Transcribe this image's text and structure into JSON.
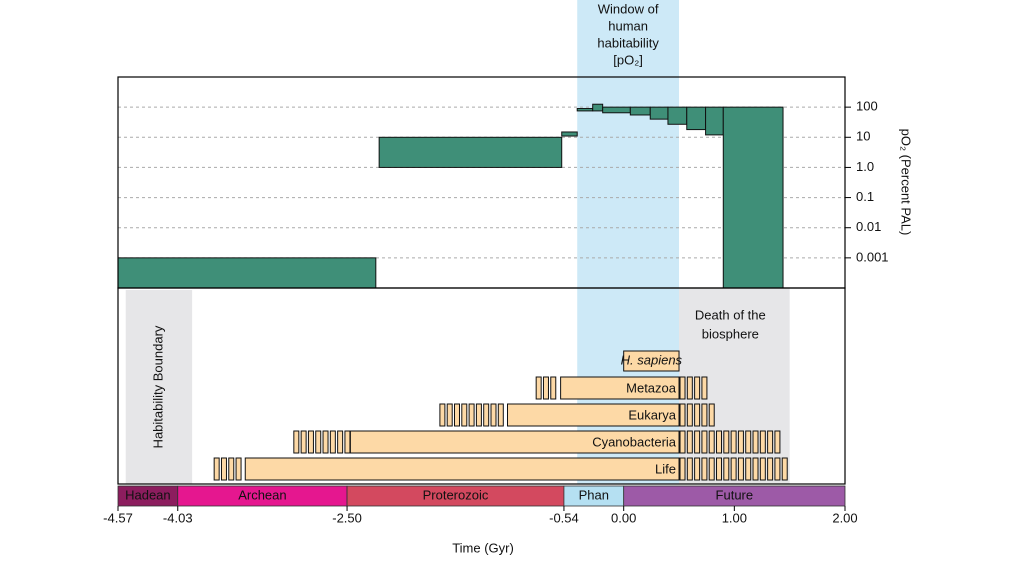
{
  "chart_data": {
    "type": "timeline",
    "xlabel": "Time (Gyr)",
    "xlim": [
      -4.57,
      2.0
    ],
    "xticks": [
      -4.57,
      -4.03,
      {
        "value": -2.5,
        "label": "-2.50"
      },
      {
        "value": -0.54,
        "label": "-0.54"
      },
      {
        "value": 0,
        "label": "0.00"
      },
      {
        "value": 1,
        "label": "1.00"
      },
      {
        "value": 2,
        "label": "2.00"
      }
    ],
    "eras": [
      {
        "name": "Hadean",
        "start": -4.57,
        "end": -4.03,
        "color": "#8c1d5e"
      },
      {
        "name": "Archean",
        "start": -4.03,
        "end": -2.5,
        "color": "#e5178f"
      },
      {
        "name": "Proterozoic",
        "start": -2.5,
        "end": -0.54,
        "color": "#d3495f"
      },
      {
        "name": "Phan",
        "start": -0.54,
        "end": 0,
        "color": "#b5e0f2"
      },
      {
        "name": "Future",
        "start": 0,
        "end": 2.0,
        "color": "#9d5aa7"
      }
    ],
    "o2": {
      "ylabel": "pO₂ (Percent PAL)",
      "log": true,
      "grid": true,
      "color": "#3f8f78",
      "ylim": [
        0.0001,
        1000
      ],
      "yticks": [
        100,
        10,
        {
          "value": 1,
          "label": "1.0"
        },
        0.1,
        0.01,
        0.001
      ],
      "bands": [
        {
          "start": -4.57,
          "end": -2.24,
          "low": 0.0001,
          "high": 0.001
        },
        {
          "start": -2.21,
          "end": -0.56,
          "low": 1,
          "high": 10
        },
        {
          "start": -0.56,
          "end": -0.42,
          "low": 11,
          "high": 15
        },
        {
          "start": -0.42,
          "end": -0.28,
          "low": 75,
          "high": 90
        },
        {
          "start": -0.28,
          "end": -0.19,
          "low": 75,
          "high": 125
        },
        {
          "start": -0.19,
          "end": 0.06,
          "low": 65,
          "high": 100
        },
        {
          "start": 0.06,
          "end": 0.24,
          "low": 55,
          "high": 100
        },
        {
          "start": 0.24,
          "end": 0.4,
          "low": 40,
          "high": 100
        },
        {
          "start": 0.4,
          "end": 0.57,
          "low": 27,
          "high": 100
        },
        {
          "start": 0.57,
          "end": 0.74,
          "low": 18,
          "high": 100
        },
        {
          "start": 0.74,
          "end": 0.9,
          "low": 12,
          "high": 100
        },
        {
          "start": 0.9,
          "end": 1.44,
          "low": 0.0001,
          "high": 100
        }
      ]
    },
    "window": {
      "label": [
        "Window of",
        "human",
        "habitability",
        "[pO₂]"
      ],
      "start": -0.42,
      "end": 0.5,
      "color": "#cde9f7"
    },
    "zones": [
      {
        "label": [
          "Habitability Boundary"
        ],
        "start": -4.5,
        "end": -3.9,
        "color": "#e6e6e8"
      },
      {
        "label": [
          "Death of the",
          "biosphere"
        ],
        "start": 0.5,
        "end": 1.5,
        "color": "#e6e6e8"
      }
    ],
    "lineages": [
      {
        "name": "Life",
        "hatch_start": -3.71,
        "start": -3.42,
        "end": 0.5,
        "hatch_end": 1.5
      },
      {
        "name": "Cyanobacteria",
        "hatch_start": -2.99,
        "start": -2.47,
        "end": 0.5,
        "hatch_end": 1.43
      },
      {
        "name": "Eukarya",
        "hatch_start": -1.67,
        "start": -1.05,
        "end": 0.5,
        "hatch_end": 0.83
      },
      {
        "name": "Metazoa",
        "hatch_start": -0.8,
        "start": -0.57,
        "end": 0.5,
        "hatch_end": 0.76
      },
      {
        "name": "H. sapiens",
        "start": 0,
        "end": 0.5
      }
    ],
    "lineage_color": "#fdd9a6"
  }
}
